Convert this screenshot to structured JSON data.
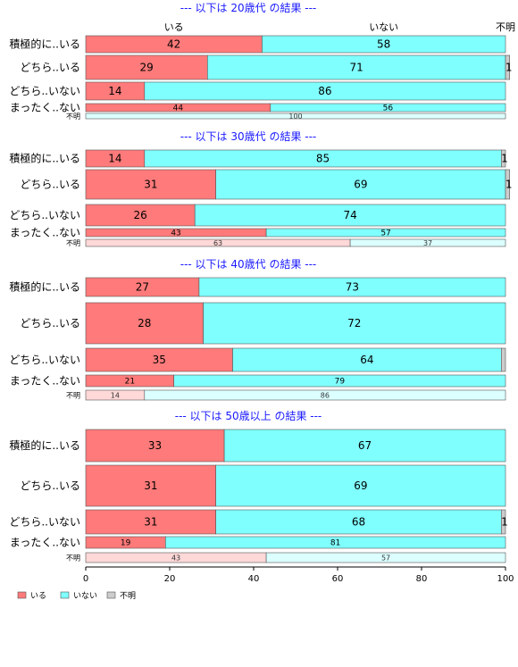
{
  "chart_data": {
    "type": "bar",
    "orientation": "horizontal",
    "stacked": true,
    "column_headers": [
      "いる",
      "いない",
      "不明"
    ],
    "legend": {
      "position": "bottom-left",
      "entries": [
        {
          "label": "いる",
          "color": "#ff7a7a"
        },
        {
          "label": "いない",
          "color": "#80ffff"
        },
        {
          "label": "不明",
          "color": "#cccccc"
        }
      ]
    },
    "xlim": [
      0,
      100
    ],
    "xticks": [
      "0",
      "20",
      "40",
      "60",
      "80",
      "100"
    ],
    "colors": {
      "iru": "#ff7a7a",
      "inai": "#80ffff",
      "fumei": "#cccccc",
      "iru_light": "#ffd8d8",
      "inai_light": "#dcffff",
      "title": "#1a1aff"
    },
    "panels": [
      {
        "title": "--- 以下は 20歳代 の結果 ---",
        "rows": [
          {
            "label": "積極的に..いる",
            "values": [
              42,
              58,
              0
            ],
            "labels": [
              "42",
              "58",
              ""
            ]
          },
          {
            "label": "どちら..いる",
            "values": [
              29,
              71,
              1
            ],
            "labels": [
              "29",
              "71",
              "1"
            ]
          },
          {
            "label": "どちら..いない",
            "values": [
              14,
              86,
              0
            ],
            "labels": [
              "14",
              "86",
              ""
            ]
          },
          {
            "label": "まったく..ない",
            "values": [
              44,
              56,
              0
            ],
            "labels": [
              "44",
              "56",
              ""
            ]
          },
          {
            "label": "不明",
            "values": [
              0,
              100,
              0
            ],
            "labels": [
              "",
              "100",
              ""
            ]
          }
        ]
      },
      {
        "title": "--- 以下は 30歳代 の結果 ---",
        "rows": [
          {
            "label": "積極的に..いる",
            "values": [
              14,
              85,
              1
            ],
            "labels": [
              "14",
              "85",
              "1"
            ]
          },
          {
            "label": "どちら..いる",
            "values": [
              31,
              69,
              1
            ],
            "labels": [
              "31",
              "69",
              "1"
            ]
          },
          {
            "label": "どちら..いない",
            "values": [
              26,
              74,
              0
            ],
            "labels": [
              "26",
              "74",
              ""
            ]
          },
          {
            "label": "まったく..ない",
            "values": [
              43,
              57,
              0
            ],
            "labels": [
              "43",
              "57",
              ""
            ]
          },
          {
            "label": "不明",
            "values": [
              63,
              37,
              0
            ],
            "labels": [
              "63",
              "37",
              ""
            ]
          }
        ]
      },
      {
        "title": "--- 以下は 40歳代 の結果 ---",
        "rows": [
          {
            "label": "積極的に..いる",
            "values": [
              27,
              73,
              0
            ],
            "labels": [
              "27",
              "73",
              ""
            ]
          },
          {
            "label": "どちら..いる",
            "values": [
              28,
              72,
              0
            ],
            "labels": [
              "28",
              "72",
              ""
            ]
          },
          {
            "label": "どちら..いない",
            "values": [
              35,
              64,
              1
            ],
            "labels": [
              "35",
              "64",
              ""
            ]
          },
          {
            "label": "まったく..ない",
            "values": [
              21,
              79,
              0
            ],
            "labels": [
              "21",
              "79",
              ""
            ]
          },
          {
            "label": "不明",
            "values": [
              14,
              86,
              0
            ],
            "labels": [
              "14",
              "86",
              ""
            ]
          }
        ]
      },
      {
        "title": "--- 以下は 50歳以上 の結果 ---",
        "rows": [
          {
            "label": "積極的に..いる",
            "values": [
              33,
              67,
              0
            ],
            "labels": [
              "33",
              "67",
              ""
            ]
          },
          {
            "label": "どちら..いる",
            "values": [
              31,
              69,
              0
            ],
            "labels": [
              "31",
              "69",
              ""
            ]
          },
          {
            "label": "どちら..いない",
            "values": [
              31,
              68,
              1
            ],
            "labels": [
              "31",
              "68",
              "1"
            ]
          },
          {
            "label": "まったく..ない",
            "values": [
              19,
              81,
              0
            ],
            "labels": [
              "19",
              "81",
              ""
            ]
          },
          {
            "label": "不明",
            "values": [
              43,
              57,
              0
            ],
            "labels": [
              "43",
              "57",
              ""
            ]
          }
        ]
      }
    ]
  }
}
